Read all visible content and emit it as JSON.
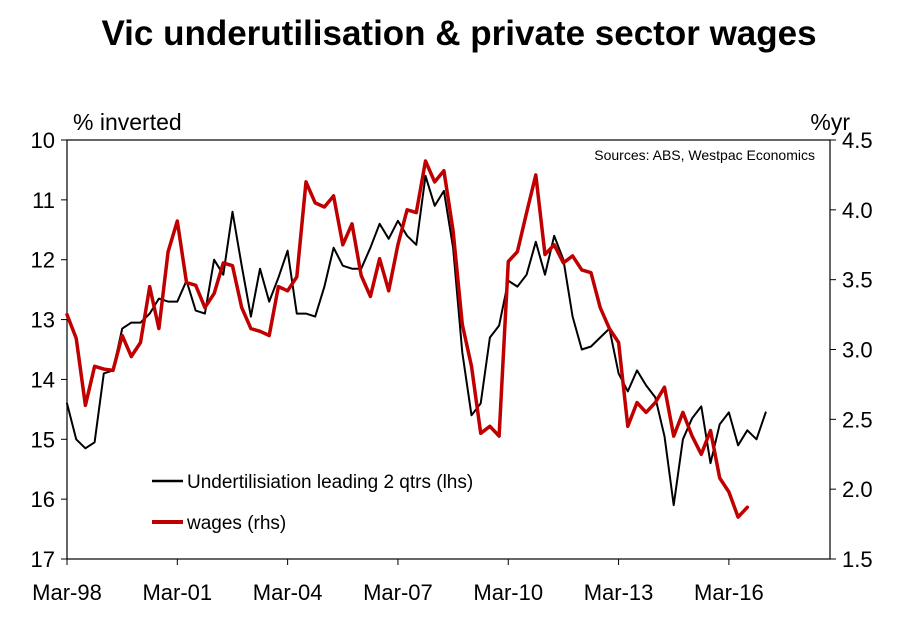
{
  "chart_data": {
    "type": "line",
    "title": "Vic underutilisation & private sector wages",
    "y_left_label": "% inverted",
    "y_right_label": "%yr",
    "source_note": "Sources: ABS, Westpac Economics",
    "y_left_range": [
      10,
      17
    ],
    "y_left_inverted": true,
    "y_right_range": [
      1.5,
      4.5
    ],
    "y_left_ticks": [
      "10",
      "11",
      "12",
      "13",
      "14",
      "15",
      "16",
      "17"
    ],
    "y_right_ticks": [
      "4.5",
      "4.0",
      "3.5",
      "3.0",
      "2.5",
      "2.0",
      "1.5"
    ],
    "x_ticks": [
      "Mar-98",
      "Mar-01",
      "Mar-04",
      "Mar-07",
      "Mar-10",
      "Mar-13",
      "Mar-16"
    ],
    "x_tick_years": [
      1998,
      2001,
      2004,
      2007,
      2010,
      2013,
      2016
    ],
    "x_range": [
      1998,
      2018.75
    ],
    "legend": {
      "placement": "lower-left"
    },
    "series": [
      {
        "name": "Undertilisiation leading 2 qtrs (lhs)",
        "axis": "left",
        "color": "#000000",
        "x_start": 1998.0,
        "x_step": 0.25,
        "values": [
          14.4,
          15.0,
          15.15,
          15.05,
          13.9,
          13.85,
          13.15,
          13.05,
          13.05,
          12.9,
          12.65,
          12.7,
          12.7,
          12.35,
          12.85,
          12.9,
          12.0,
          12.25,
          11.2,
          12.1,
          12.95,
          12.15,
          12.7,
          12.3,
          11.85,
          12.9,
          12.9,
          12.95,
          12.45,
          11.8,
          12.1,
          12.15,
          12.15,
          11.8,
          11.4,
          11.65,
          11.35,
          11.6,
          11.75,
          10.6,
          11.1,
          10.85,
          11.8,
          13.55,
          14.6,
          14.4,
          13.3,
          13.1,
          12.35,
          12.45,
          12.25,
          11.7,
          12.25,
          11.6,
          12.0,
          12.95,
          13.5,
          13.45,
          13.3,
          13.15,
          13.9,
          14.2,
          13.85,
          14.1,
          14.3,
          14.95,
          16.1,
          15.0,
          14.65,
          14.45,
          15.4,
          14.75,
          14.55,
          15.1,
          14.85,
          15.0,
          14.55
        ]
      },
      {
        "name": "wages (rhs)",
        "axis": "right",
        "color": "#c00000",
        "x_start": 1998.0,
        "x_step": 0.25,
        "values": [
          3.25,
          3.08,
          2.6,
          2.88,
          2.86,
          2.85,
          3.1,
          2.95,
          3.05,
          3.45,
          3.15,
          3.7,
          3.92,
          3.48,
          3.46,
          3.3,
          3.4,
          3.62,
          3.6,
          3.3,
          3.15,
          3.13,
          3.1,
          3.45,
          3.42,
          3.52,
          4.2,
          4.05,
          4.02,
          4.1,
          3.75,
          3.9,
          3.53,
          3.38,
          3.65,
          3.42,
          3.75,
          4.0,
          3.98,
          4.35,
          4.2,
          4.28,
          3.85,
          3.18,
          2.88,
          2.4,
          2.45,
          2.38,
          3.63,
          3.7,
          3.98,
          4.25,
          3.68,
          3.75,
          3.62,
          3.67,
          3.57,
          3.55,
          3.3,
          3.15,
          3.05,
          2.45,
          2.62,
          2.55,
          2.62,
          2.73,
          2.38,
          2.55,
          2.38,
          2.25,
          2.42,
          2.08,
          1.98,
          1.8,
          1.87
        ]
      }
    ]
  }
}
